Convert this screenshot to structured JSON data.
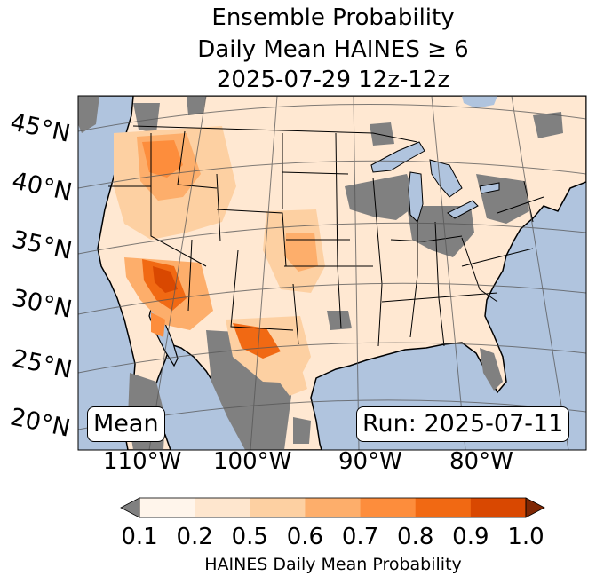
{
  "title": {
    "line1": "Ensemble Probability",
    "line2": "Daily Mean HAINES ≥ 6",
    "line3": "2025-07-29 12z-12z"
  },
  "map": {
    "latitude_labels": [
      "45°N",
      "40°N",
      "35°N",
      "30°N",
      "25°N",
      "20°N"
    ],
    "longitude_labels": [
      "110°W",
      "100°W",
      "90°W",
      "80°W"
    ],
    "stat_box": "Mean",
    "run_box": "Run: 2025-07-11",
    "colors": {
      "ocean": "#b0c4de",
      "land": "#ffe8d2",
      "missing": "#808080",
      "lakes": "#b0c4de"
    }
  },
  "colorbar": {
    "label": "HAINES Daily Mean Probability",
    "ticks": [
      "0.1",
      "0.2",
      "0.5",
      "0.6",
      "0.7",
      "0.8",
      "0.9",
      "1.0"
    ],
    "under_color": "#808080",
    "over_color": "#7f2704",
    "bins": [
      "#fff5eb",
      "#fee6ce",
      "#fdd0a2",
      "#fdae6b",
      "#fd8d3c",
      "#f16913",
      "#d94801"
    ]
  }
}
